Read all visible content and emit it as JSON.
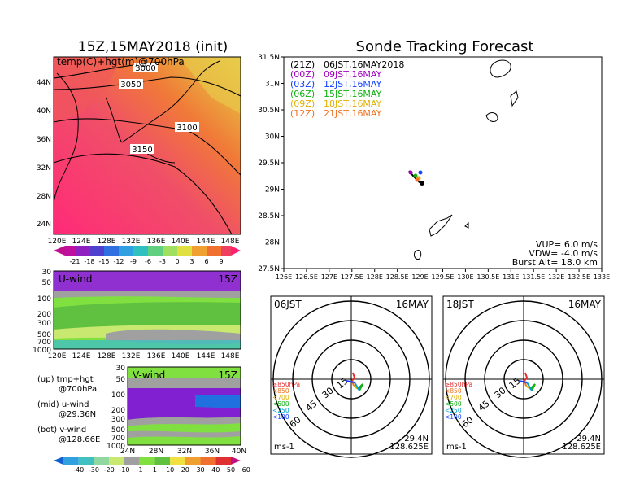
{
  "left_top": {
    "title": "15Z,15MAY2018 (init)",
    "subtitle": "temp(C)+hgt(m)@700hPa",
    "lat_labels": [
      "24N",
      "28N",
      "32N",
      "36N",
      "40N",
      "44N"
    ],
    "lon_labels": [
      "120E",
      "124E",
      "128E",
      "132E",
      "136E",
      "140E",
      "144E",
      "148E"
    ],
    "contour_labels": [
      "3000",
      "3050",
      "3100",
      "3150"
    ],
    "colorbar_labels": [
      "-21",
      "-18",
      "-15",
      "-12",
      "-9",
      "-6",
      "-3",
      "0",
      "3",
      "6",
      "9"
    ],
    "colors": {
      "warm": "#f0407a",
      "hot": "#ff2070",
      "orange": "#f07030",
      "yellow": "#e8d040"
    }
  },
  "u_panel": {
    "label": "U-wind",
    "time": "15Z",
    "p_labels": [
      "30",
      "50",
      "100",
      "200",
      "300",
      "500",
      "700",
      "1000"
    ],
    "lon_labels": [
      "120E",
      "124E",
      "128E",
      "132E",
      "136E",
      "140E",
      "144E",
      "148E"
    ]
  },
  "v_panel": {
    "label": "V-wind",
    "time": "15Z",
    "p_labels": [
      "30",
      "50",
      "100",
      "200",
      "300",
      "500",
      "700",
      "1000"
    ],
    "lat_labels": [
      "24N",
      "28N",
      "32N",
      "36N",
      "40N"
    ]
  },
  "side_notes": [
    [
      "(up) tmp+hgt",
      "@700hPa"
    ],
    [
      "(mid) u-wind",
      "@29.36N"
    ],
    [
      "(bot) v-wind",
      "@128.66E"
    ]
  ],
  "bottom_colorbar_labels": [
    "-40",
    "-30",
    "-20",
    "-10",
    "-1",
    "1",
    "10",
    "20",
    "30",
    "40",
    "50",
    "60"
  ],
  "bottom_colorbar_colors": [
    "#1060d0",
    "#30a0e0",
    "#40c0c0",
    "#90d8a0",
    "#c8e870",
    "#a0a0a0",
    "#80e040",
    "#60c040",
    "#f0e040",
    "#f0a030",
    "#f07030",
    "#e03030",
    "#c01080"
  ],
  "right_top": {
    "title": "Sonde Tracking Forecast",
    "lat_labels": [
      "27.5N",
      "28N",
      "28.5N",
      "29N",
      "29.5N",
      "30N",
      "30.5N",
      "31N",
      "31.5N"
    ],
    "lon_labels": [
      "126E",
      "126.5E",
      "127E",
      "127.5E",
      "128E",
      "128.5E",
      "129E",
      "129.5E",
      "130E",
      "130.5E",
      "131E",
      "131.5E",
      "132E",
      "132.5E",
      "133E"
    ],
    "legend": [
      {
        "code": "(21Z)",
        "time": "06JST,16MAY2018",
        "color": "#000000"
      },
      {
        "code": "(00Z)",
        "time": "09JST,16MAY",
        "color": "#a000c0"
      },
      {
        "code": "(03Z)",
        "time": "12JST,16MAY",
        "color": "#1040ff"
      },
      {
        "code": "(06Z)",
        "time": "15JST,16MAY",
        "color": "#10b010"
      },
      {
        "code": "(09Z)",
        "time": "18JST,16MAY",
        "color": "#e0b000"
      },
      {
        "code": "(12Z)",
        "time": "21JST,16MAY",
        "color": "#f07020"
      }
    ],
    "params": {
      "vup": "VUP= 6.0 m/s",
      "vdw": "VDW= -4.0 m/s",
      "burst": "Burst Alt= 18.0 km"
    }
  },
  "hodographs": [
    {
      "time": "06JST",
      "date": "16MAY",
      "lat": "29.4N",
      "lon": "128.625E",
      "unit": "ms-1"
    },
    {
      "time": "18JST",
      "date": "16MAY",
      "lat": "29.4N",
      "lon": "128.625E",
      "unit": "ms-1"
    }
  ],
  "hodo_ring_labels": [
    "15",
    "30",
    "45",
    "60"
  ],
  "hodo_legend": [
    {
      "text": "≥850hPa",
      "color": "#e03030"
    },
    {
      "text": "<850",
      "color": "#f07020"
    },
    {
      "text": "<700",
      "color": "#e0b000"
    },
    {
      "text": "<500",
      "color": "#10b010"
    },
    {
      "text": "<250",
      "color": "#00a0d0"
    },
    {
      "text": "<100",
      "color": "#1040ff"
    }
  ]
}
